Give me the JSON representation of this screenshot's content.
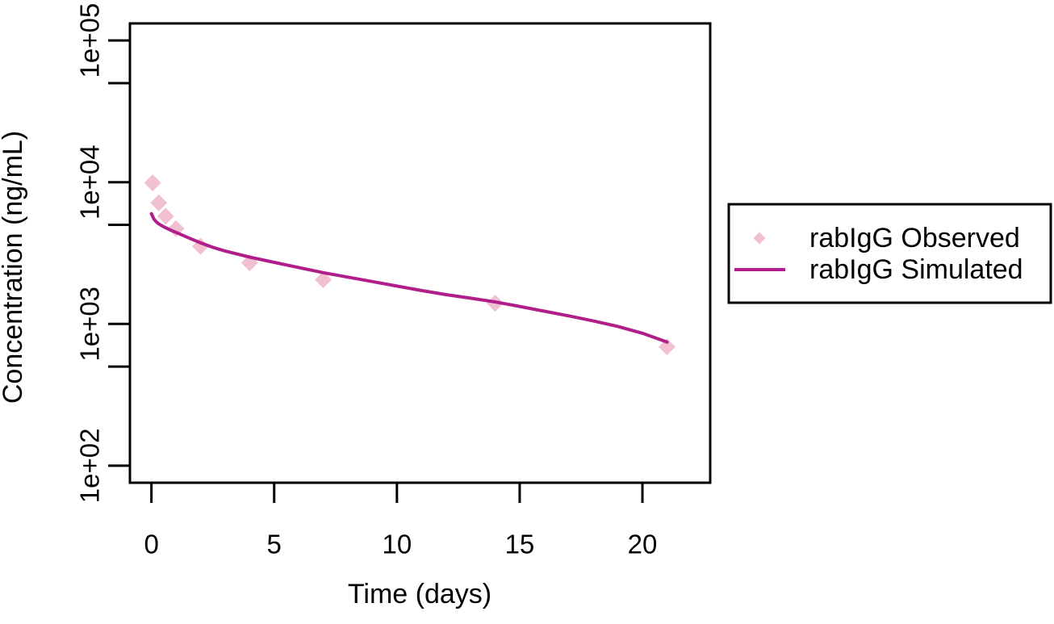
{
  "figure": {
    "background": "#ffffff",
    "text_color": "#000000"
  },
  "chart_data": {
    "type": "line",
    "title": "",
    "xlabel": "Time (days)",
    "ylabel": "Concentration (ng/mL)",
    "grid": false,
    "legend_position": "right-outside",
    "x_axis": {
      "scale": "linear",
      "display_range": [
        -0.875,
        22.76
      ],
      "ticks": [
        {
          "value": 0,
          "label": "0"
        },
        {
          "value": 5,
          "label": "5"
        },
        {
          "value": 10,
          "label": "10"
        },
        {
          "value": 15,
          "label": "15"
        },
        {
          "value": 20,
          "label": "20"
        }
      ]
    },
    "y_axis": {
      "scale": "log10",
      "display_range_log10": [
        1.88,
        5.12
      ],
      "ticks": [
        {
          "value": 100000,
          "label": "1e+05"
        },
        {
          "value": 50000,
          "label": ""
        },
        {
          "value": 10000,
          "label": "1e+04"
        },
        {
          "value": 5000,
          "label": ""
        },
        {
          "value": 1000,
          "label": "1e+03"
        },
        {
          "value": 500,
          "label": ""
        },
        {
          "value": 100,
          "label": "1e+02"
        }
      ]
    },
    "series": [
      {
        "name": "rabIgG Observed",
        "type": "scatter",
        "marker": "diamond",
        "color": "#f2c1d1",
        "points": [
          [
            0.05,
            9900
          ],
          [
            0.3,
            7150
          ],
          [
            0.58,
            5750
          ],
          [
            1,
            4700
          ],
          [
            2,
            3530
          ],
          [
            4,
            2700
          ],
          [
            7,
            2050
          ],
          [
            14,
            1400
          ],
          [
            21,
            690
          ]
        ]
      },
      {
        "name": "rabIgG Simulated",
        "type": "line",
        "color": "#b01e8c",
        "points": [
          [
            0,
            6000
          ],
          [
            0.1,
            5500
          ],
          [
            0.2,
            5250
          ],
          [
            0.3,
            5080
          ],
          [
            0.5,
            4850
          ],
          [
            0.75,
            4620
          ],
          [
            1,
            4430
          ],
          [
            1.5,
            4060
          ],
          [
            2,
            3730
          ],
          [
            2.5,
            3470
          ],
          [
            3,
            3270
          ],
          [
            4,
            2960
          ],
          [
            5,
            2720
          ],
          [
            6,
            2500
          ],
          [
            7,
            2300
          ],
          [
            8,
            2140
          ],
          [
            9,
            1990
          ],
          [
            10,
            1850
          ],
          [
            11,
            1720
          ],
          [
            12,
            1610
          ],
          [
            13,
            1520
          ],
          [
            14,
            1430
          ],
          [
            15,
            1330
          ],
          [
            16,
            1230
          ],
          [
            17,
            1140
          ],
          [
            18,
            1050
          ],
          [
            19,
            960
          ],
          [
            20,
            860
          ],
          [
            21,
            745
          ]
        ]
      }
    ]
  }
}
